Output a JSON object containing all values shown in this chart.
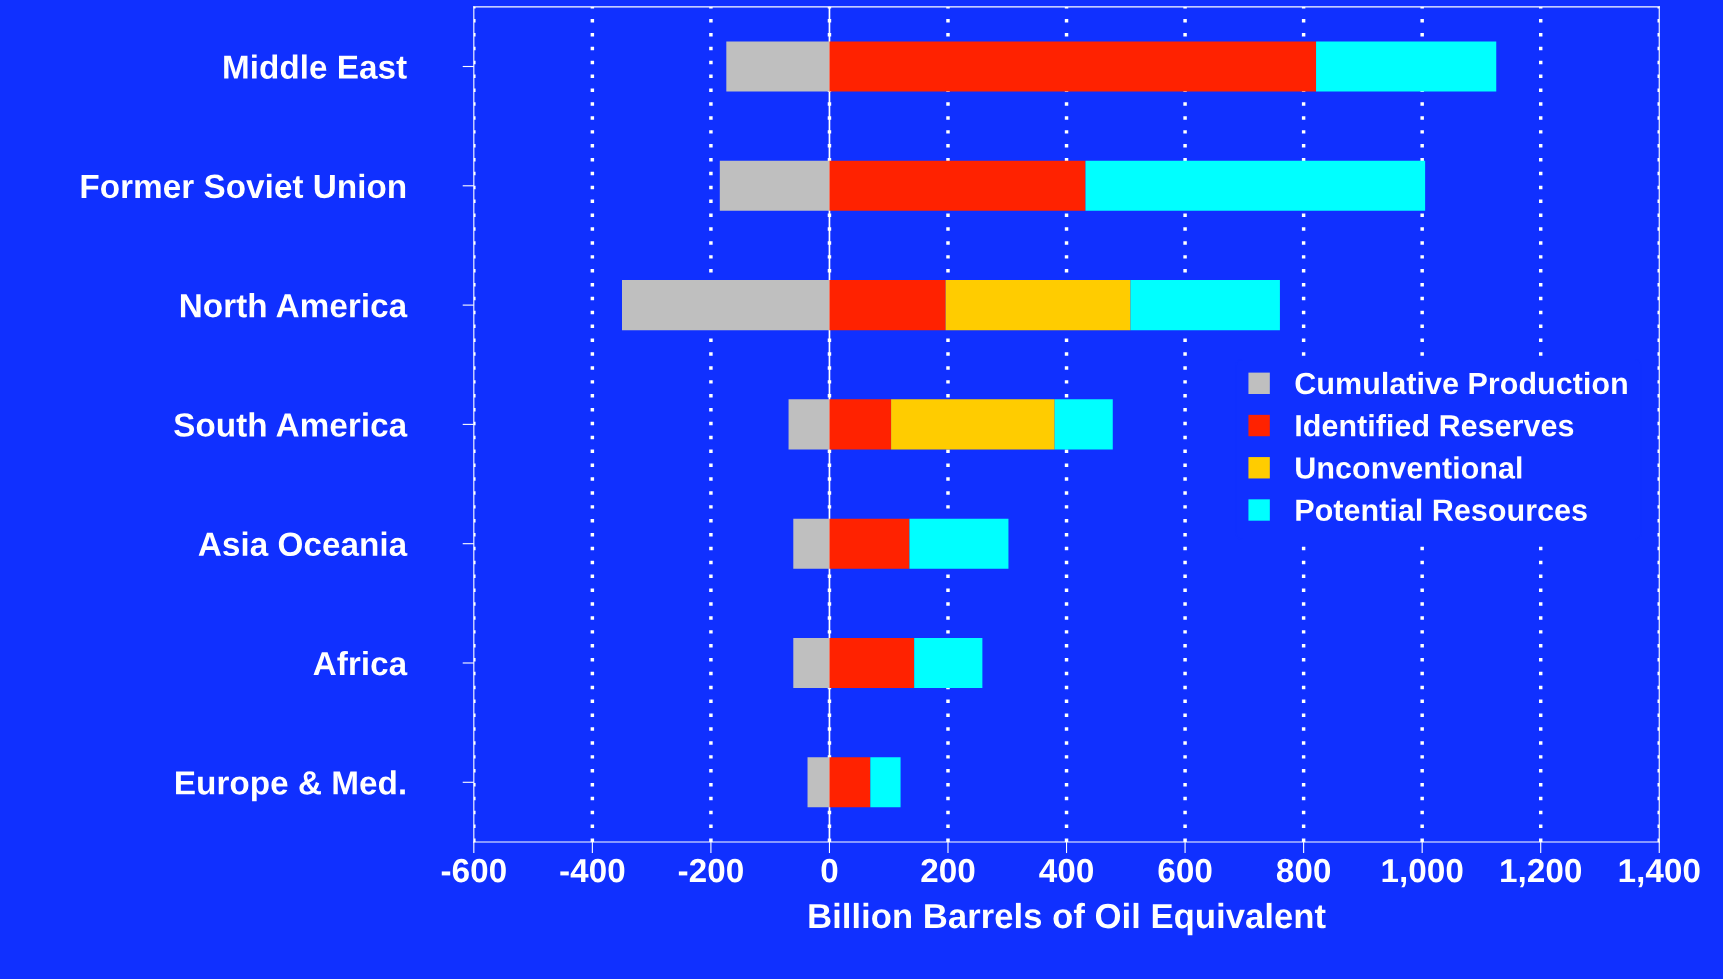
{
  "chart_data": {
    "type": "bar",
    "orientation": "horizontal",
    "stacked": true,
    "xlabel": "Billion Barrels of Oil Equivalent",
    "categories": [
      "Middle East",
      "Former Soviet Union",
      "North America",
      "South America",
      "Asia Oceania",
      "Africa",
      "Europe & Med."
    ],
    "series": [
      {
        "name": "Cumulative Production",
        "color": "#bfbfbf",
        "values": [
          -174,
          -185,
          -350,
          -69,
          -61,
          -61,
          -37
        ]
      },
      {
        "name": "Identified Reserves",
        "color": "#ff2200",
        "values": [
          821,
          432,
          196,
          104,
          135,
          143,
          69
        ]
      },
      {
        "name": "Unconventional",
        "color": "#ffcc00",
        "values": [
          null,
          null,
          312,
          276,
          null,
          null,
          null
        ]
      },
      {
        "name": "Potential Resources",
        "color": "#00ffff",
        "values": [
          304,
          573,
          252,
          98,
          167,
          115,
          51
        ]
      }
    ],
    "xlim": [
      -600,
      1400
    ],
    "xticks": [
      -600,
      -400,
      -200,
      0,
      200,
      400,
      600,
      800,
      {
        "value": 1000,
        "label": "1,000"
      },
      {
        "value": 1200,
        "label": "1,200"
      },
      {
        "value": 1400,
        "label": "1,400"
      }
    ],
    "grid": "x",
    "legend": "right"
  }
}
